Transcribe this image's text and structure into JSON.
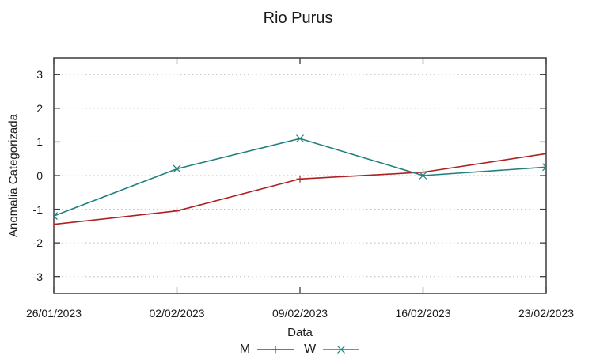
{
  "chart_data": {
    "type": "line",
    "title": "Rio Purus",
    "xlabel": "Data",
    "ylabel": "Anomalia Categorizada",
    "categories": [
      "26/01/2023",
      "02/02/2023",
      "09/02/2023",
      "16/02/2023",
      "23/02/2023"
    ],
    "series": [
      {
        "name": "M",
        "color": "#ad2121",
        "marker": "plus",
        "values": [
          -1.45,
          -1.05,
          -0.1,
          0.1,
          0.65
        ]
      },
      {
        "name": "W",
        "color": "#21807f",
        "marker": "cross",
        "values": [
          -1.2,
          0.2,
          1.1,
          0.0,
          0.25
        ]
      }
    ],
    "ylim": [
      -3.5,
      3.5
    ],
    "yticks": [
      -3,
      -2,
      -1,
      0,
      1,
      2,
      3
    ],
    "grid": "horizontal-dotted",
    "grid_color": "#b9b9b9",
    "border_color": "#3c3c3c",
    "legend_position": "bottom"
  }
}
